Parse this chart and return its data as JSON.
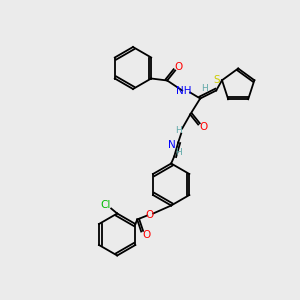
{
  "bg_color": "#ebebeb",
  "bond_color": "#000000",
  "bond_lw": 1.3,
  "atom_colors": {
    "N": "#0000ff",
    "O": "#ff0000",
    "S": "#cccc00",
    "Cl": "#00bb00",
    "H": "#5fa8a8",
    "C": "#000000"
  },
  "font_size": 7.5,
  "font_size_small": 6.5
}
